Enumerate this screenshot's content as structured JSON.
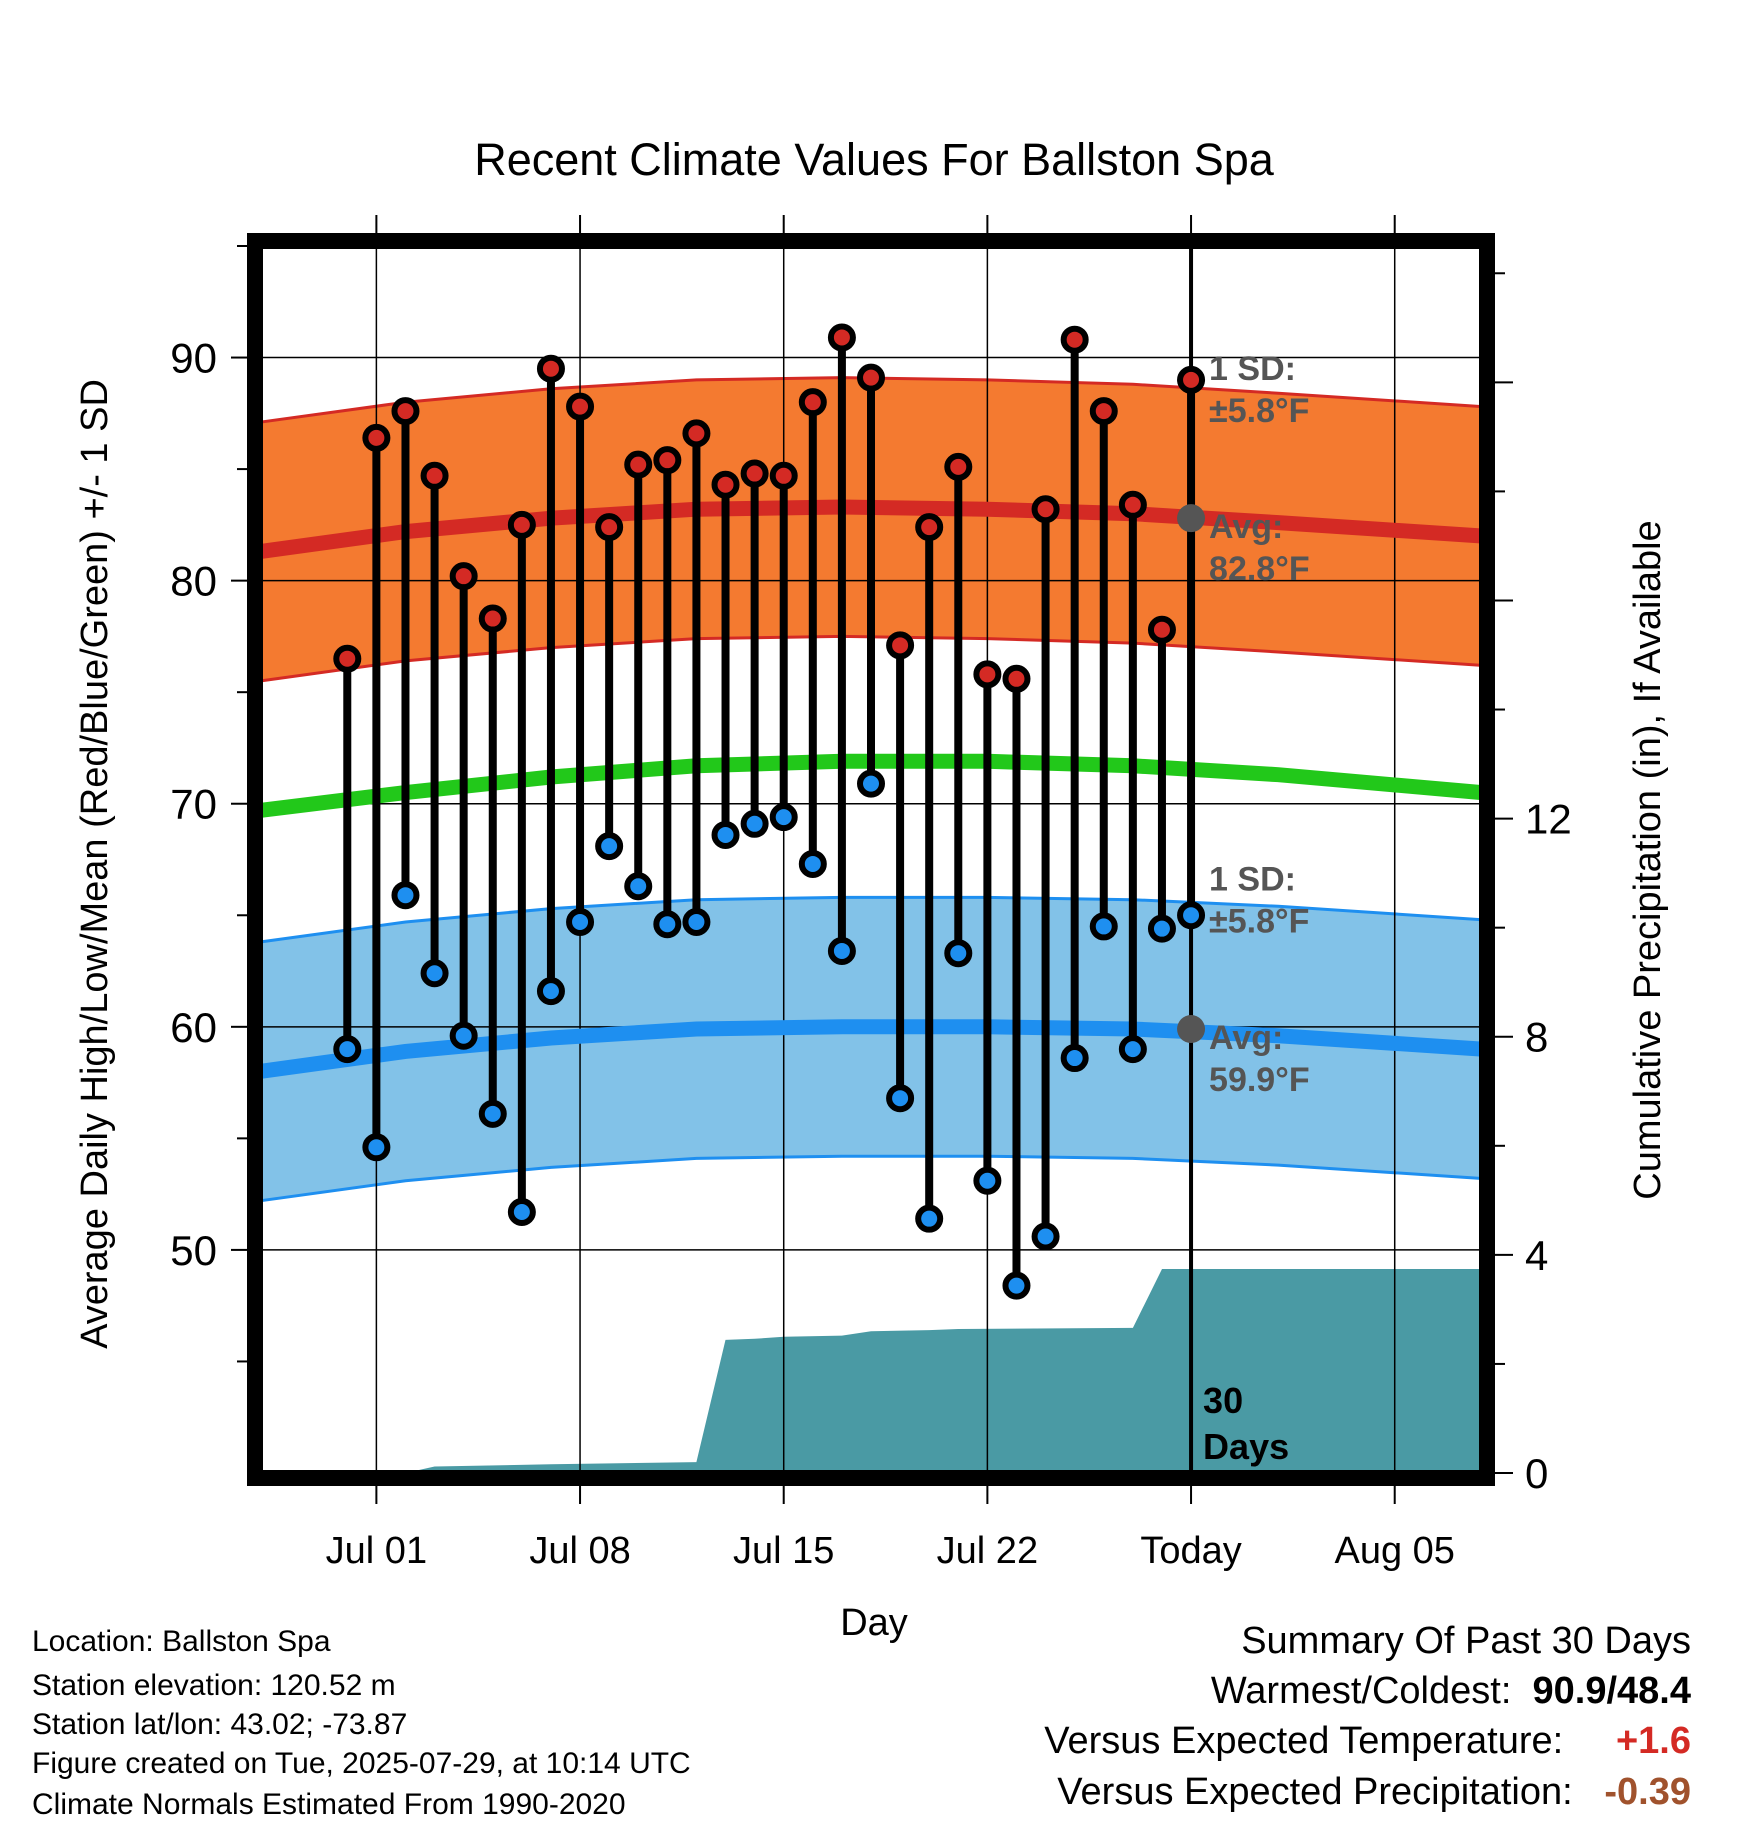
{
  "chart_data": {
    "type": "line",
    "title": "Recent Climate Values For Ballston Spa",
    "xlabel": "Day",
    "ylabel": "Average Daily High/Low/Mean (Red/Blue/Green) +/- 1 SD",
    "ylabel_right": "Cumulative Precipitation (in), If Available",
    "ylim": [
      40,
      95
    ],
    "ylim_right": [
      0,
      22.5
    ],
    "y_ticks": [
      50,
      60,
      70,
      80,
      90
    ],
    "y_ticks_right": [
      0,
      4,
      8,
      12
    ],
    "x_tick_labels": [
      {
        "day": "2025-07-01",
        "label": "Jul 01"
      },
      {
        "day": "2025-07-08",
        "label": "Jul 08"
      },
      {
        "day": "2025-07-15",
        "label": "Jul 15"
      },
      {
        "day": "2025-07-22",
        "label": "Jul 22"
      },
      {
        "day": "2025-07-29",
        "label": "Today"
      },
      {
        "day": "2025-08-05",
        "label": "Aug 05"
      }
    ],
    "xlim": [
      "2025-06-27",
      "2025-08-08"
    ],
    "today": "2025-07-29",
    "window_label": [
      "30",
      "Days"
    ],
    "daily": [
      {
        "day": "2025-06-30",
        "high": 76.5,
        "low": 59.0
      },
      {
        "day": "2025-07-01",
        "high": 86.4,
        "low": 54.6
      },
      {
        "day": "2025-07-02",
        "high": 87.6,
        "low": 65.9
      },
      {
        "day": "2025-07-03",
        "high": 84.7,
        "low": 62.4
      },
      {
        "day": "2025-07-04",
        "high": 80.2,
        "low": 59.6
      },
      {
        "day": "2025-07-05",
        "high": 78.3,
        "low": 56.1
      },
      {
        "day": "2025-07-06",
        "high": 82.5,
        "low": 51.7
      },
      {
        "day": "2025-07-07",
        "high": 89.5,
        "low": 61.6
      },
      {
        "day": "2025-07-08",
        "high": 87.8,
        "low": 64.7
      },
      {
        "day": "2025-07-09",
        "high": 82.4,
        "low": 68.1
      },
      {
        "day": "2025-07-10",
        "high": 85.2,
        "low": 66.3
      },
      {
        "day": "2025-07-11",
        "high": 85.4,
        "low": 64.6
      },
      {
        "day": "2025-07-12",
        "high": 86.6,
        "low": 64.7
      },
      {
        "day": "2025-07-13",
        "high": 84.3,
        "low": 68.6
      },
      {
        "day": "2025-07-14",
        "high": 84.8,
        "low": 69.1
      },
      {
        "day": "2025-07-15",
        "high": 84.7,
        "low": 69.4
      },
      {
        "day": "2025-07-16",
        "high": 88.0,
        "low": 67.3
      },
      {
        "day": "2025-07-17",
        "high": 90.9,
        "low": 63.4
      },
      {
        "day": "2025-07-18",
        "high": 89.1,
        "low": 70.9
      },
      {
        "day": "2025-07-19",
        "high": 77.1,
        "low": 56.8
      },
      {
        "day": "2025-07-20",
        "high": 82.4,
        "low": 51.4
      },
      {
        "day": "2025-07-21",
        "high": 85.1,
        "low": 63.3
      },
      {
        "day": "2025-07-22",
        "high": 75.8,
        "low": 53.1
      },
      {
        "day": "2025-07-23",
        "high": 75.6,
        "low": 48.4
      },
      {
        "day": "2025-07-24",
        "high": 83.2,
        "low": 50.6
      },
      {
        "day": "2025-07-25",
        "high": 90.8,
        "low": 58.6
      },
      {
        "day": "2025-07-26",
        "high": 87.6,
        "low": 64.5
      },
      {
        "day": "2025-07-27",
        "high": 83.4,
        "low": 59.0
      },
      {
        "day": "2025-07-28",
        "high": 77.8,
        "low": 64.4
      },
      {
        "day": "2025-07-29",
        "high": 89.0,
        "low": 65.0
      }
    ],
    "normals": {
      "days": [
        "2025-06-27",
        "2025-07-02",
        "2025-07-07",
        "2025-07-12",
        "2025-07-17",
        "2025-07-22",
        "2025-07-27",
        "2025-08-01",
        "2025-08-08"
      ],
      "high": [
        81.3,
        82.2,
        82.8,
        83.2,
        83.3,
        83.2,
        83.0,
        82.6,
        82.0
      ],
      "high_sd": 5.8,
      "mean": [
        69.7,
        70.5,
        71.2,
        71.7,
        71.9,
        71.9,
        71.7,
        71.3,
        70.5
      ],
      "low": [
        58.0,
        58.9,
        59.5,
        59.9,
        60.0,
        60.0,
        59.9,
        59.6,
        59.0
      ],
      "low_sd": 5.8
    },
    "precip_cumulative": [
      {
        "day": "2025-07-02",
        "value": 0.0
      },
      {
        "day": "2025-07-03",
        "value": 0.12
      },
      {
        "day": "2025-07-07",
        "value": 0.16
      },
      {
        "day": "2025-07-12",
        "value": 0.2
      },
      {
        "day": "2025-07-13",
        "value": 2.44
      },
      {
        "day": "2025-07-14",
        "value": 2.46
      },
      {
        "day": "2025-07-15",
        "value": 2.5
      },
      {
        "day": "2025-07-17",
        "value": 2.52
      },
      {
        "day": "2025-07-18",
        "value": 2.6
      },
      {
        "day": "2025-07-20",
        "value": 2.62
      },
      {
        "day": "2025-07-21",
        "value": 2.64
      },
      {
        "day": "2025-07-27",
        "value": 2.66
      },
      {
        "day": "2025-07-28",
        "value": 3.74
      },
      {
        "day": "2025-08-08",
        "value": 3.74
      }
    ],
    "annotations": {
      "high_sd": [
        "1 SD:",
        "±5.8°F"
      ],
      "high_avg": [
        "Avg:",
        "82.8°F"
      ],
      "low_sd": [
        "1 SD:",
        "±5.8°F"
      ],
      "low_avg": [
        "Avg:",
        "59.9°F"
      ],
      "high_avg_value": 82.8,
      "low_avg_value": 59.9
    },
    "colors": {
      "high_band": "#f47a30",
      "high_line": "#d42a24",
      "mean_line": "#22c81a",
      "low_band": "#82c2e8",
      "low_line": "#1e8ff0",
      "precip": "#4a9aa4",
      "high_marker": "#d42a24",
      "low_marker": "#1e8ff0",
      "annotation": "#555555"
    }
  },
  "station": {
    "location": "Location: Ballston Spa",
    "elevation": "Station elevation: 120.52 m",
    "latlon": "Station lat/lon: 43.02; -73.87",
    "created": "Figure created on Tue, 2025-07-29, at 10:14 UTC",
    "normals": "Climate Normals Estimated From 1990-2020"
  },
  "summary": {
    "title": "Summary Of Past 30 Days",
    "warmest_label": "Warmest/Coldest:",
    "warmest_value": "90.9/48.4",
    "temp_label": "Versus Expected Temperature:",
    "temp_value": "+1.6",
    "temp_color": "#d42a24",
    "precip_label": "Versus Expected Precipitation:",
    "precip_value": "-0.39",
    "precip_color": "#a0522d"
  }
}
